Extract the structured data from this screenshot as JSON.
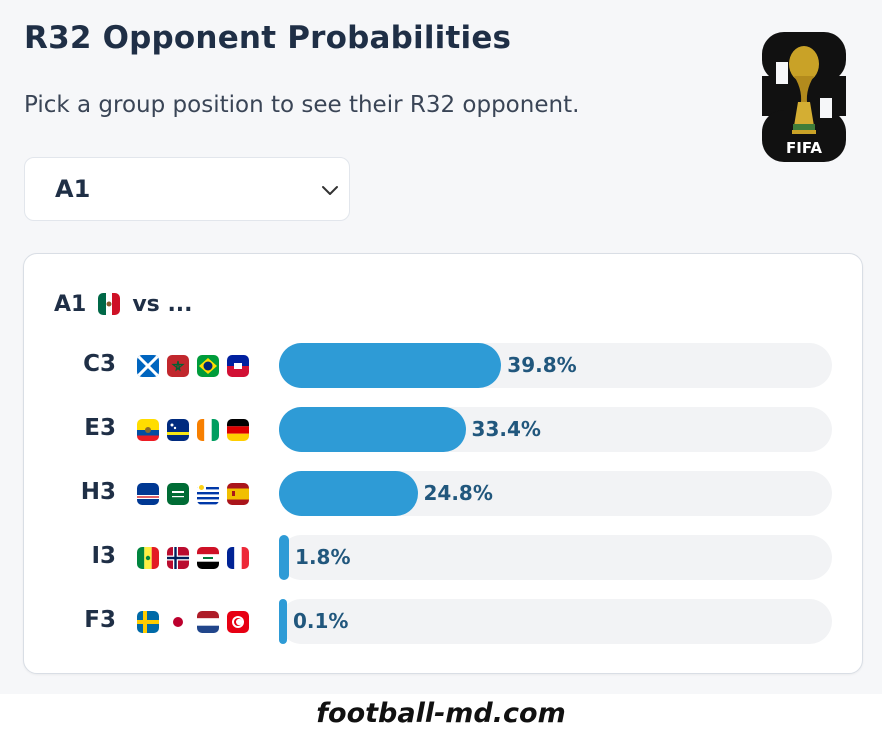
{
  "header": {
    "title": "R32 Opponent Probabilities",
    "subtitle": "Pick a group position to see their R32 opponent."
  },
  "logo": {
    "text": "FIFA",
    "icon": "world-cup-2026-logo"
  },
  "select": {
    "value": "A1",
    "icon": "chevron-down-icon"
  },
  "card": {
    "team_label": "A1",
    "team_flag": "mexico-flag-icon",
    "vs_text": "vs ..."
  },
  "rows": [
    {
      "label": "C3",
      "percent": 39.8,
      "percent_text": "39.8%",
      "flags": [
        "scotland",
        "morocco",
        "brazil",
        "haiti"
      ]
    },
    {
      "label": "E3",
      "percent": 33.4,
      "percent_text": "33.4%",
      "flags": [
        "ecuador",
        "curacao",
        "ivory-coast",
        "germany"
      ]
    },
    {
      "label": "H3",
      "percent": 24.8,
      "percent_text": "24.8%",
      "flags": [
        "cape-verde",
        "saudi-arabia",
        "uruguay",
        "spain"
      ]
    },
    {
      "label": "I3",
      "percent": 1.8,
      "percent_text": "1.8%",
      "flags": [
        "senegal",
        "norway",
        "iraq",
        "france"
      ]
    },
    {
      "label": "F3",
      "percent": 0.1,
      "percent_text": "0.1%",
      "flags": [
        "sweden",
        "japan",
        "netherlands",
        "tunisia"
      ]
    }
  ],
  "colors": {
    "bar_fill": "#2e9bd6",
    "bar_track": "#f2f3f5",
    "percent_text": "#21577d",
    "title_text": "#1f2f46"
  },
  "footer": {
    "watermark": "football-md.com"
  }
}
